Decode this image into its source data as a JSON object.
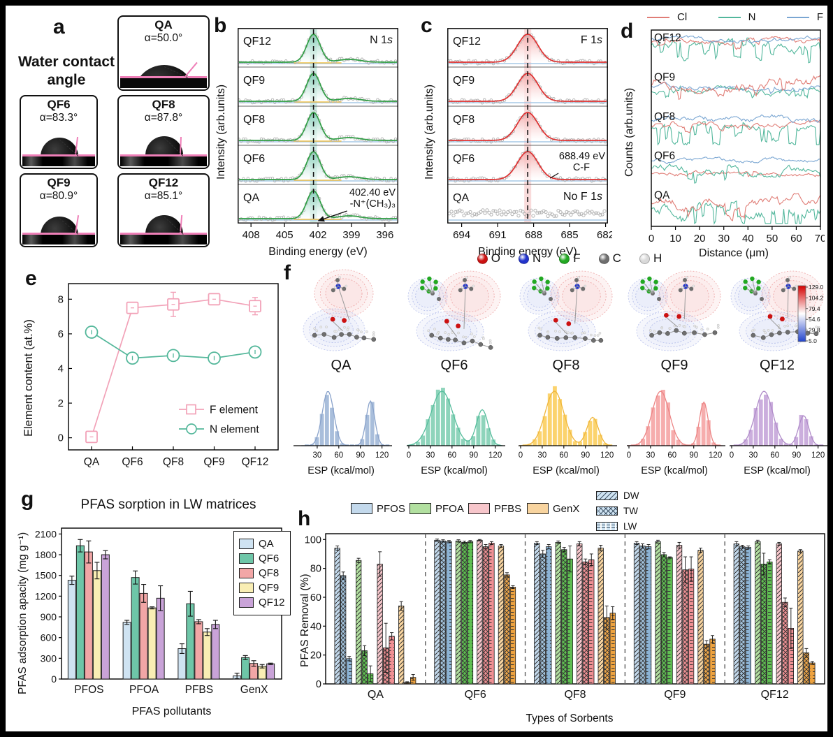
{
  "panels": {
    "letters": {
      "a": "a",
      "b": "b",
      "c": "c",
      "d": "d",
      "e": "e",
      "f": "f",
      "g": "g",
      "h": "h"
    },
    "a": {
      "title": "Water contact angle",
      "tiles": [
        {
          "label": "QA",
          "angle_text": "α=50.0°",
          "angle_deg": 50.0
        },
        {
          "label": "QF6",
          "angle_text": "α=83.3°",
          "angle_deg": 83.3
        },
        {
          "label": "QF8",
          "angle_text": "α=87.8°",
          "angle_deg": 87.8
        },
        {
          "label": "QF9",
          "angle_text": "α=80.9°",
          "angle_deg": 80.9
        },
        {
          "label": "QF12",
          "angle_text": "α=85.1°",
          "angle_deg": 85.1
        }
      ]
    },
    "f": {
      "atom_legend": [
        {
          "label": "O",
          "color": "#cc1111"
        },
        {
          "label": "N",
          "color": "#2233cc"
        },
        {
          "label": "F",
          "color": "#22a822"
        },
        {
          "label": "C",
          "color": "#6e6e6e"
        },
        {
          "label": "H",
          "color": "#d9d9d9"
        }
      ],
      "colorbar_ticks": [
        "129.0",
        "104.2",
        "79.4",
        "54.6",
        "29.8",
        "5.0"
      ],
      "molecules": [
        {
          "label": "QA",
          "has_F": false
        },
        {
          "label": "QF6",
          "has_F": true
        },
        {
          "label": "QF8",
          "has_F": true
        },
        {
          "label": "QF9",
          "has_F": true
        },
        {
          "label": "QF12",
          "has_F": true
        }
      ]
    }
  },
  "chart_data": [
    {
      "id": "b",
      "type": "line",
      "corner_label": [
        "N 1",
        "s"
      ],
      "xlabel": "Binding energy (eV)",
      "ylabel": "Intensity (arb.units)",
      "x_ticks": [
        408,
        405,
        402,
        399,
        396
      ],
      "x_range": [
        409.2,
        394.8
      ],
      "series": [
        "QF12",
        "QF9",
        "QF8",
        "QF6",
        "QA"
      ],
      "peak_ev": 402.4,
      "peak_sigma_ev": 0.6,
      "secondary_peak_ev": 399.2,
      "annotation": [
        "402.40 eV",
        "-N⁺(CH₃)₃"
      ],
      "line_color": "#2f9e44",
      "fill_color": "#7ecbb4",
      "band_color": "rgba(126,203,180,0.38)"
    },
    {
      "id": "c",
      "type": "line",
      "corner_label": [
        "F 1",
        "s"
      ],
      "xlabel": "Binding energy (eV)",
      "ylabel": "Intensity (arb.units)",
      "x_ticks": [
        694,
        691,
        688,
        685,
        682
      ],
      "x_range": [
        695.2,
        681.8
      ],
      "series": [
        "QF12",
        "QF9",
        "QF8",
        "QF6",
        "QA"
      ],
      "peak_ev": 688.49,
      "peak_sigma_ev": 0.85,
      "annotation": [
        "688.49 eV",
        "C-F"
      ],
      "qa_label": [
        "No F 1",
        "s"
      ],
      "line_color": "#e03131",
      "fill_color": "#f3a6a6",
      "band_color": "rgba(240,160,160,0.38)"
    },
    {
      "id": "d",
      "type": "line",
      "xlabel": "Distance (μm)",
      "ylabel": "Counts (arb.units)",
      "x_ticks": [
        0,
        10,
        20,
        30,
        40,
        50,
        60,
        70
      ],
      "legend": [
        {
          "label": "Cl",
          "color": "#e07d76"
        },
        {
          "label": "N",
          "color": "#52b79c"
        },
        {
          "label": "F",
          "color": "#7aa6d2"
        }
      ],
      "traces": [
        {
          "label": "QF12",
          "lines": [
            [
              "N",
              0.52,
              0.16,
              0.1,
              0.3
            ],
            [
              "Cl",
              0.63,
              0.1,
              0.02,
              0.15
            ],
            [
              "F",
              0.67,
              0.09,
              0.0,
              0.0
            ]
          ]
        },
        {
          "label": "QF9",
          "lines": [
            [
              "N",
              0.36,
              0.12,
              0.06,
              0.15
            ],
            [
              "F",
              0.47,
              0.1,
              0.02,
              0.1
            ],
            [
              "Cl",
              0.6,
              0.22,
              0.03,
              0.2
            ]
          ]
        },
        {
          "label": "QF8",
          "lines": [
            [
              "N",
              0.42,
              0.14,
              0.12,
              0.35
            ],
            [
              "Cl",
              0.5,
              0.1,
              0.02,
              0.1
            ],
            [
              "F",
              0.66,
              0.13,
              0.0,
              0.0
            ]
          ]
        },
        {
          "label": "QF6",
          "lines": [
            [
              "Cl",
              0.28,
              0.08,
              0.02,
              0.1
            ],
            [
              "N",
              0.38,
              0.14,
              0.05,
              0.2
            ],
            [
              "F",
              0.6,
              0.08,
              0.0,
              0.0
            ]
          ]
        },
        {
          "label": "QA",
          "lines": [
            [
              "N",
              0.42,
              0.22,
              0.12,
              0.3
            ],
            [
              "Cl",
              0.52,
              0.2,
              0.03,
              0.2
            ]
          ]
        }
      ]
    },
    {
      "id": "e",
      "type": "line",
      "ylabel": "Element content (at.%)",
      "categories": [
        "QA",
        "QF6",
        "QF8",
        "QF9",
        "QF12"
      ],
      "y_ticks": [
        0,
        2,
        4,
        6,
        8
      ],
      "series": [
        {
          "name": "F element",
          "color": "#f2a2b8",
          "marker": "square",
          "values": [
            0.05,
            7.5,
            7.7,
            8.0,
            7.6
          ],
          "errors": [
            0.1,
            0.2,
            0.7,
            0.3,
            0.5
          ]
        },
        {
          "name": "N element",
          "color": "#53b79a",
          "marker": "circle",
          "values": [
            6.1,
            4.6,
            4.75,
            4.6,
            4.95
          ],
          "errors": [
            0.2,
            0.3,
            0.25,
            0.25,
            0.2
          ]
        }
      ]
    },
    {
      "id": "f",
      "type": "histogram",
      "xlabel": "ESP (kcal/mol)",
      "histograms": [
        {
          "label": "QA",
          "color": "#a9bedb",
          "line_color": "#8aa3cb",
          "x_ticks": [
            30,
            60,
            90,
            120
          ],
          "x_min": 12,
          "x_max": 127,
          "peaks": [
            [
              45,
              8,
              1.0
            ],
            [
              104,
              6,
              0.82
            ]
          ]
        },
        {
          "label": "QF6",
          "color": "#8ed4bb",
          "line_color": "#57bd9d",
          "x_ticks": [
            0,
            30,
            60,
            90,
            120
          ],
          "x_min": 2,
          "x_max": 126,
          "peaks": [
            [
              46,
              15,
              1.0
            ],
            [
              102,
              8,
              0.66
            ]
          ]
        },
        {
          "label": "QF8",
          "color": "#fbd36e",
          "line_color": "#efb63c",
          "x_ticks": [
            0,
            30,
            60,
            90,
            120
          ],
          "x_min": 2,
          "x_max": 122,
          "peaks": [
            [
              47,
              13,
              1.0
            ],
            [
              100,
              8,
              0.52
            ]
          ]
        },
        {
          "label": "QF9",
          "color": "#f6adad",
          "line_color": "#ec8585",
          "x_ticks": [
            0,
            30,
            60,
            90,
            120
          ],
          "x_min": 2,
          "x_max": 126,
          "peaks": [
            [
              44,
              12,
              1.0
            ],
            [
              104,
              6,
              0.8
            ]
          ]
        },
        {
          "label": "QF12",
          "color": "#cbaedd",
          "line_color": "#b08cc9",
          "x_ticks": [
            0,
            30,
            60,
            90,
            120
          ],
          "x_min": 2,
          "x_max": 124,
          "peaks": [
            [
              45,
              12,
              1.0
            ],
            [
              100,
              7,
              0.55
            ]
          ]
        }
      ]
    },
    {
      "id": "g",
      "type": "bar",
      "title": "PFAS sorption in LW matrices",
      "ylabel": "PFAS adsorption apacity (mg g⁻¹)",
      "xlabel": "PFAS pollutants",
      "y_ticks": [
        0,
        300,
        600,
        900,
        1200,
        1500,
        1800,
        2100
      ],
      "ylim": [
        0,
        2100
      ],
      "categories": [
        "PFOS",
        "PFOA",
        "PFBS",
        "GenX"
      ],
      "series": [
        {
          "name": "QA",
          "color": "#cfe3f2",
          "values": [
            1430,
            820,
            440,
            45
          ],
          "errors": [
            60,
            30,
            70,
            40
          ]
        },
        {
          "name": "QF6",
          "color": "#6ec6a8",
          "values": [
            1930,
            1470,
            1090,
            310
          ],
          "errors": [
            90,
            95,
            180,
            30
          ]
        },
        {
          "name": "QF8",
          "color": "#f2a6a6",
          "values": [
            1840,
            1240,
            830,
            225
          ],
          "errors": [
            160,
            130,
            30,
            40
          ]
        },
        {
          "name": "QF9",
          "color": "#f9eeb4",
          "values": [
            1570,
            1030,
            680,
            185
          ],
          "errors": [
            120,
            15,
            50,
            25
          ]
        },
        {
          "name": "QF12",
          "color": "#c9a3d8",
          "values": [
            1800,
            1170,
            790,
            220
          ],
          "errors": [
            60,
            180,
            60,
            10
          ]
        }
      ]
    },
    {
      "id": "h",
      "type": "bar",
      "ylabel": "PFAS Removal (%)",
      "xlabel": "Types of Sorbents",
      "y_ticks": [
        0,
        20,
        40,
        60,
        80,
        100
      ],
      "ylim": [
        0,
        100
      ],
      "groups": [
        "QA",
        "QF6",
        "QF8",
        "QF9",
        "QF12"
      ],
      "pollutants": [
        {
          "name": "PFOS",
          "legend_color": "#c3d9ec",
          "fills": [
            "#c3d9ec",
            "#a3c4de",
            "#8cb3d4"
          ]
        },
        {
          "name": "PFOA",
          "legend_color": "#b2e0a0",
          "fills": [
            "#b2e0a0",
            "#5fbf52",
            "#5fbf52"
          ]
        },
        {
          "name": "PFBS",
          "legend_color": "#f7c6cb",
          "fills": [
            "#f7c6cb",
            "#ef9094",
            "#ef9094"
          ]
        },
        {
          "name": "GenX",
          "legend_color": "#f8d49f",
          "fills": [
            "#f8d49f",
            "#efa74a",
            "#eda23f"
          ]
        }
      ],
      "matrices": [
        "DW",
        "TW",
        "LW"
      ],
      "values": {
        "QA": {
          "PFOS": [
            94,
            75,
            17.5
          ],
          "PFOA": [
            85.5,
            23,
            7
          ],
          "PFBS": [
            83,
            25,
            33
          ],
          "GenX": [
            54,
            1,
            4.5
          ]
        },
        "QF6": {
          "PFOS": [
            99.5,
            99,
            98.5
          ],
          "PFOA": [
            99,
            98,
            98.5
          ],
          "PFBS": [
            99.5,
            95,
            97.5
          ],
          "GenX": [
            95.5,
            75.5,
            67
          ]
        },
        "QF8": {
          "PFOS": [
            97.5,
            90,
            95
          ],
          "PFOA": [
            98,
            93,
            86.5
          ],
          "PFBS": [
            97,
            84.5,
            86
          ],
          "GenX": [
            94,
            46,
            49
          ]
        },
        "QF9": {
          "PFOS": [
            97.5,
            95.5,
            95
          ],
          "PFOA": [
            98.5,
            89.5,
            87.5
          ],
          "PFBS": [
            96,
            79,
            79.5
          ],
          "GenX": [
            92.5,
            27.5,
            31
          ]
        },
        "QF12": {
          "PFOS": [
            97,
            95,
            94.5
          ],
          "PFOA": [
            98.5,
            83,
            84.5
          ],
          "PFBS": [
            97,
            56.5,
            38.5
          ],
          "GenX": [
            92,
            21.5,
            14.5
          ]
        }
      },
      "errors": {
        "QA": {
          "PFOS": [
            1.5,
            2.5,
            1.5
          ],
          "PFOA": [
            1.5,
            3.5,
            5.5
          ],
          "PFBS": [
            8.5,
            17,
            2.5
          ],
          "GenX": [
            3,
            0.5,
            2
          ]
        },
        "QF6": {
          "PFOS": [
            0.8,
            0.8,
            0.8
          ],
          "PFOA": [
            0.8,
            0.8,
            0.8
          ],
          "PFBS": [
            0.5,
            1.5,
            1
          ],
          "GenX": [
            1,
            1.5,
            1
          ]
        },
        "QF8": {
          "PFOS": [
            1,
            2.5,
            1.5
          ],
          "PFOA": [
            1,
            1.5,
            9
          ],
          "PFBS": [
            1.5,
            2,
            4
          ],
          "GenX": [
            2,
            8,
            4.5
          ]
        },
        "QF9": {
          "PFOS": [
            1,
            1.5,
            1.5
          ],
          "PFOA": [
            1,
            1.5,
            0.5
          ],
          "PFBS": [
            2,
            9,
            8.5
          ],
          "GenX": [
            1.5,
            2.5,
            2.5
          ]
        },
        "QF12": {
          "PFOS": [
            1.5,
            1,
            1
          ],
          "PFOA": [
            1,
            7.5,
            1.5
          ],
          "PFBS": [
            1,
            3,
            14
          ],
          "GenX": [
            1,
            3,
            1
          ]
        }
      }
    }
  ]
}
